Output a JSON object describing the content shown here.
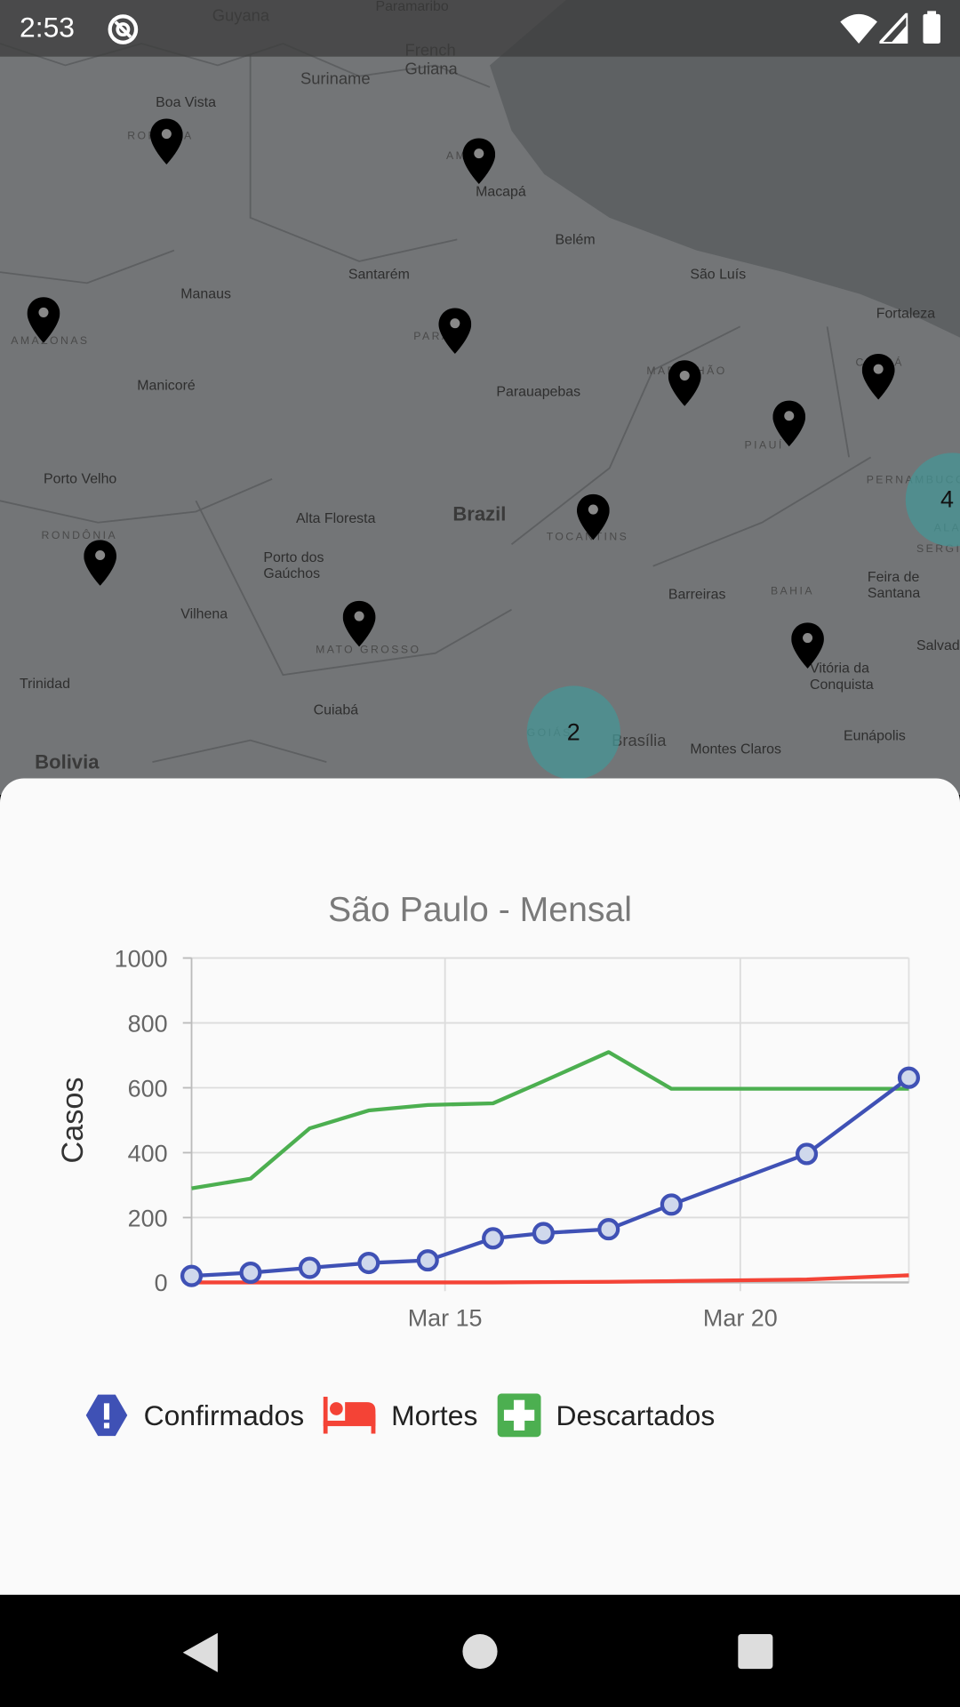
{
  "status_bar": {
    "time": "2:53",
    "icons": [
      "at-sign-icon",
      "wifi-icon",
      "signal-icon",
      "battery-icon"
    ]
  },
  "map": {
    "labels": [
      "Guyana",
      "Paramaribo",
      "Suriname",
      "French Guiana",
      "Boa Vista",
      "RORAIMA",
      "Macapá",
      "AMAPÁ",
      "Belém",
      "São Luís",
      "Santarém",
      "Manaus",
      "Fortaleza",
      "AMAZONAS",
      "PARÁ",
      "MARANHÃO",
      "CEARÁ",
      "Manicoré",
      "Parauapebas",
      "PIAUÍ",
      "Porto Velho",
      "PERNAMBUCO",
      "Brazil",
      "TOCANTINS",
      "Alta Floresta",
      "RONDÔNIA",
      "Porto dos Gaúchos",
      "ALAGOAS",
      "SERGIPE",
      "Vilhena",
      "Barreiras",
      "BAHIA",
      "Feira de Santana",
      "MATO GROSSO",
      "Trinidad",
      "Vitória da Conquista",
      "Salvador",
      "Cuiabá",
      "GOIÁS",
      "Brasília",
      "Montes Claros",
      "Eunápolis",
      "Bolivia"
    ],
    "clusters": [
      "2",
      "4"
    ],
    "pin_icon": "map-marker-icon"
  },
  "chart_data": {
    "type": "line",
    "title": "São Paulo - Mensal",
    "ylabel": "Casos",
    "xlabel": "",
    "ylim": [
      0,
      1000
    ],
    "yticks": [
      "0",
      "200",
      "400",
      "600",
      "800",
      "1000"
    ],
    "xticks": [
      {
        "label": "Mar 15",
        "date": "2020-03-15"
      },
      {
        "label": "Mar 20",
        "date": "2020-03-20"
      }
    ],
    "xlim": [
      "2020-03-10T17:00",
      "2020-03-22T20:30"
    ],
    "grid": true,
    "legend_position": "bottom",
    "x": [
      "2020-03-10T17:00",
      "2020-03-11T17:00",
      "2020-03-12T17:00",
      "2020-03-13T17:00",
      "2020-03-14T17:00",
      "2020-03-15T19:30",
      "2020-03-16T16:00",
      "2020-03-17T18:30",
      "2020-03-18T20:00",
      "2020-03-21T03:00",
      "2020-03-22T20:30"
    ],
    "series": [
      {
        "name": "Confirmados",
        "color": "#3f51b5",
        "markers": true,
        "values": [
          20,
          30,
          45,
          60,
          68,
          136,
          152,
          164,
          240,
          396,
          631
        ]
      },
      {
        "name": "Mortes",
        "color": "#f44336",
        "markers": false,
        "values": [
          0,
          0,
          0,
          0,
          0,
          0,
          1,
          2,
          4,
          9,
          22
        ]
      },
      {
        "name": "Descartados",
        "color": "#4caf50",
        "markers": false,
        "values": [
          290,
          320,
          475,
          530,
          547,
          552,
          620,
          710,
          597,
          597,
          597
        ]
      }
    ]
  },
  "legend": [
    {
      "label": "Confirmados",
      "icon": "alert-octagon-icon",
      "color": "#3f51b5"
    },
    {
      "label": "Mortes",
      "icon": "bed-icon",
      "color": "#f44336"
    },
    {
      "label": "Descartados",
      "icon": "medical-cross-icon",
      "color": "#4caf50"
    }
  ],
  "nav_bar": {
    "buttons": [
      "back-button",
      "home-button",
      "recents-button"
    ]
  }
}
